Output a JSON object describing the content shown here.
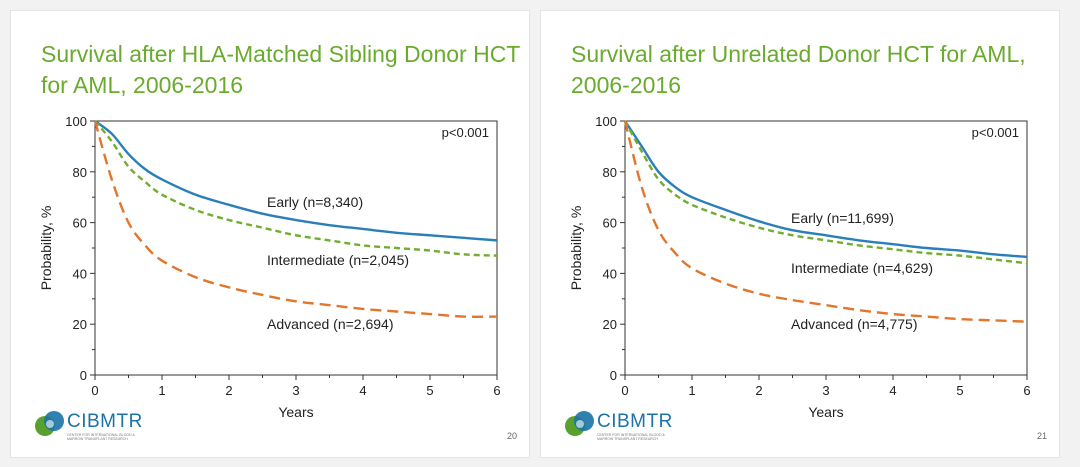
{
  "slides": [
    {
      "title": "Survival after HLA-Matched Sibling Donor HCT for AML, 2006-2016",
      "page_number": "20",
      "logo": {
        "name": "CIBMTR",
        "subtitle": "CENTER FOR INTERNATIONAL BLOOD & MARROW TRANSPLANT RESEARCH"
      }
    },
    {
      "title": "Survival after Unrelated Donor HCT for AML, 2006-2016",
      "page_number": "21",
      "logo": {
        "name": "CIBMTR",
        "subtitle": "CENTER FOR INTERNATIONAL BLOOD & MARROW TRANSPLANT RESEARCH"
      }
    }
  ],
  "colors": {
    "title": "#6aab2e",
    "early": "#2a7fba",
    "intermediate": "#6fae2e",
    "advanced": "#e2762b"
  },
  "chart_data": [
    {
      "type": "line",
      "title": "Survival after HLA-Matched Sibling Donor HCT for AML, 2006-2016",
      "xlabel": "Years",
      "ylabel": "Probability, %",
      "xlim": [
        0,
        6
      ],
      "ylim": [
        0,
        100
      ],
      "xticks": [
        0,
        1,
        2,
        3,
        4,
        5,
        6
      ],
      "yticks": [
        0,
        20,
        40,
        60,
        80,
        100
      ],
      "annotation": "p<0.001",
      "series": [
        {
          "name": "Early (n=8,340)",
          "key": "early",
          "x": [
            0,
            0.25,
            0.5,
            0.75,
            1,
            1.5,
            2,
            2.5,
            3,
            3.5,
            4,
            4.5,
            5,
            5.5,
            6
          ],
          "y": [
            100,
            95,
            87,
            81,
            77,
            71,
            67,
            63.5,
            61,
            59,
            57.5,
            56,
            55,
            54,
            53
          ]
        },
        {
          "name": "Intermediate (n=2,045)",
          "key": "intermediate",
          "x": [
            0,
            0.25,
            0.5,
            0.75,
            1,
            1.5,
            2,
            2.5,
            3,
            3.5,
            4,
            4.5,
            5,
            5.5,
            6
          ],
          "y": [
            100,
            92,
            82,
            76,
            71,
            65,
            61,
            58,
            55,
            53,
            51,
            50,
            49,
            47.5,
            47
          ]
        },
        {
          "name": "Advanced (n=2,694)",
          "key": "advanced",
          "x": [
            0,
            0.25,
            0.5,
            0.75,
            1,
            1.5,
            2,
            2.5,
            3,
            3.5,
            4,
            4.5,
            5,
            5.5,
            6
          ],
          "y": [
            100,
            77,
            60,
            51,
            45,
            38.5,
            34.5,
            31.5,
            29,
            27.5,
            26,
            25,
            24,
            23,
            23
          ]
        }
      ]
    },
    {
      "type": "line",
      "title": "Survival after Unrelated Donor HCT for AML, 2006-2016",
      "xlabel": "Years",
      "ylabel": "Probability, %",
      "xlim": [
        0,
        6
      ],
      "ylim": [
        0,
        100
      ],
      "xticks": [
        0,
        1,
        2,
        3,
        4,
        5,
        6
      ],
      "yticks": [
        0,
        20,
        40,
        60,
        80,
        100
      ],
      "annotation": "p<0.001",
      "series": [
        {
          "name": "Early (n=11,699)",
          "key": "early",
          "x": [
            0,
            0.25,
            0.5,
            0.75,
            1,
            1.5,
            2,
            2.5,
            3,
            3.5,
            4,
            4.5,
            5,
            5.5,
            6
          ],
          "y": [
            100,
            90,
            80,
            74,
            70,
            65,
            60.5,
            57,
            55,
            53,
            51.5,
            50,
            49,
            47.5,
            46.5
          ]
        },
        {
          "name": "Intermediate (n=4,629)",
          "key": "intermediate",
          "x": [
            0,
            0.25,
            0.5,
            0.75,
            1,
            1.5,
            2,
            2.5,
            3,
            3.5,
            4,
            4.5,
            5,
            5.5,
            6
          ],
          "y": [
            100,
            88,
            77,
            71,
            67,
            62,
            58,
            55,
            53,
            51,
            49.5,
            48,
            47,
            45.5,
            44
          ]
        },
        {
          "name": "Advanced (n=4,775)",
          "key": "advanced",
          "x": [
            0,
            0.25,
            0.5,
            0.75,
            1,
            1.5,
            2,
            2.5,
            3,
            3.5,
            4,
            4.5,
            5,
            5.5,
            6
          ],
          "y": [
            100,
            74,
            57,
            48,
            42,
            36,
            32,
            29.5,
            27.5,
            25.5,
            24,
            23,
            22,
            21.5,
            21
          ]
        }
      ]
    }
  ]
}
